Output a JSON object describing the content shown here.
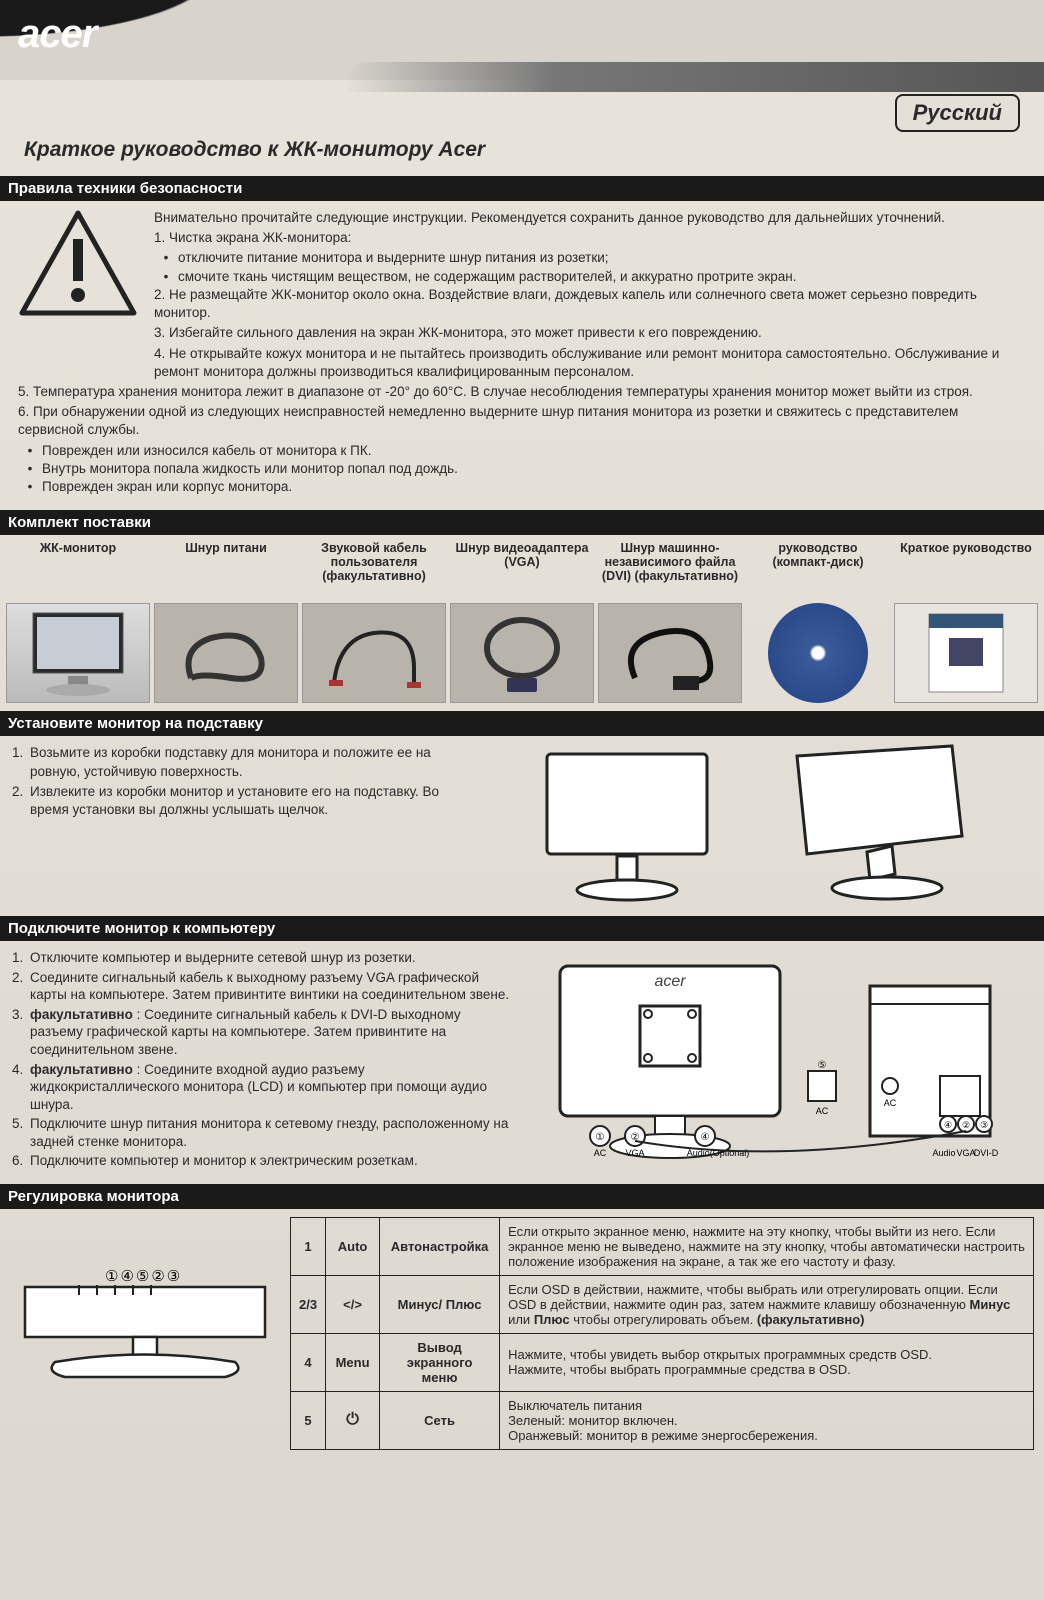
{
  "brand": "acer",
  "language_badge": "Русский",
  "doc_title": "Краткое руководство к ЖК-монитору Acer",
  "sections": {
    "safety": "Правила техники безопасности",
    "package": "Комплект поставки",
    "stand": "Установите монитор на подставку",
    "connect": "Подключите монитор к компьютеру",
    "controls": "Регулировка монитора"
  },
  "safety": {
    "intro": "Внимательно прочитайте следующие инструкции. Рекомендуется сохранить данное руководство для дальнейших уточнений.",
    "n1": "1. Чистка экрана ЖК-монитора:",
    "n1a": "отключите питание монитора и выдерните шнур питания из розетки;",
    "n1b": "смочите ткань чистящим веществом, не содержащим растворителей, и аккуратно протрите экран.",
    "n2": "2. Не размещайте ЖК-монитор около окна. Воздействие влаги, дождевых капель или солнечного света может серьезно повредить монитор.",
    "n3": "3. Избегайте сильного давления на экран ЖК-монитора, это может привести к его повреждению.",
    "n4": "4. Не открывайте кожух монитора и не пытайтесь производить обслуживание или ремонт монитора самостоятельно. Обслуживание и ремонт монитора должны производиться квалифицированным персоналом.",
    "n5": "5. Температура хранения монитора лежит в диапазоне от -20° до 60°C. В случае несоблюдения температуры хранения монитор может выйти из строя.",
    "n6": "6. При обнаружении одной из следующих неисправностей немедленно выдерните шнур питания монитора из розетки и свяжитесь с представителем сервисной службы.",
    "n6a": "Поврежден или износился кабель от монитора к ПК.",
    "n6b": "Внутрь монитора попала жидкость или монитор попал под дождь.",
    "n6c": "Поврежден экран или корпус монитора."
  },
  "package": {
    "items": [
      "ЖК-монитор",
      "Шнур питани",
      "Звуковой кабель пользователя (факультативно)",
      "Шнур видеоадаптера (VGA)",
      "Шнур машинно-независимого файла (DVI) (факультативно)",
      "руководство (компакт-диск)",
      "Краткое руководство"
    ]
  },
  "stand": {
    "s1": "Возьмите из коробки подставку для монитора и положите ее на ровную, устойчивую поверхность.",
    "s2": "Извлеките из коробки монитор и установите его на подставку. Во время установки вы должны услышать щелчок."
  },
  "connect": {
    "c1": "Отключите компьютер и выдерните сетевой шнур из розетки.",
    "c2": "Соедините сигнальный кабель к выходному разъему VGA графической карты на компьютере. Затем привинтите винтики на соединительном звене.",
    "c3": "факультативно : Соедините сигнальный кабель к DVI-D выходному разъему графической карты на компьютере. Затем привинтите на соединительном звене.",
    "c4": "факультативно : Соедините входной аудио разъему жидкокристаллического монитора (LCD) и компьютер при помощи аудио шнура.",
    "c5": "Подключите шнур питания монитора к сетевому гнезду, расположенному на задней стенке монитора.",
    "c6": "Подключите компьютер и монитор к электрическим розеткам.",
    "opt_label": "факультативно"
  },
  "controls": {
    "btn_numbers": "①④⑤②③",
    "rows": [
      {
        "num": "1",
        "sym": "Auto",
        "label": "Автонастройка",
        "desc": "Если открыто экранное меню, нажмите на эту кнопку, чтобы выйти из него. Если экранное меню не выведено, нажмите на эту кнопку, чтобы автоматически настроить положение изображения на экране, а так же его частоту и фазу."
      },
      {
        "num": "2/3",
        "sym": "</>",
        "label": "Минус/ Плюс",
        "desc": "Если OSD в действии, нажмите, чтобы выбрать или отрегулировать опции. Если OSD в действии, нажмите один раз, затем нажмите клавишу обозначенную Минус или Плюс чтобы отрегулировать объем. (факультативно)"
      },
      {
        "num": "4",
        "sym": "Menu",
        "label": "Вывод экранного меню",
        "desc": "Нажмите, чтобы увидеть выбор открытых программных средств OSD.\nНажмите, чтобы выбрать программные средства в OSD."
      },
      {
        "num": "5",
        "sym": "⏻",
        "label": "Сеть",
        "desc": "Выключатель питания\nЗеленый: монитор включен.\nОранжевый: монитор в режиме энергосбережения."
      }
    ]
  },
  "colors": {
    "section_bar_bg": "#1a1a1a",
    "section_bar_fg": "#ffffff",
    "page_bg": "#d8d4cc",
    "text": "#2a2a2a"
  }
}
